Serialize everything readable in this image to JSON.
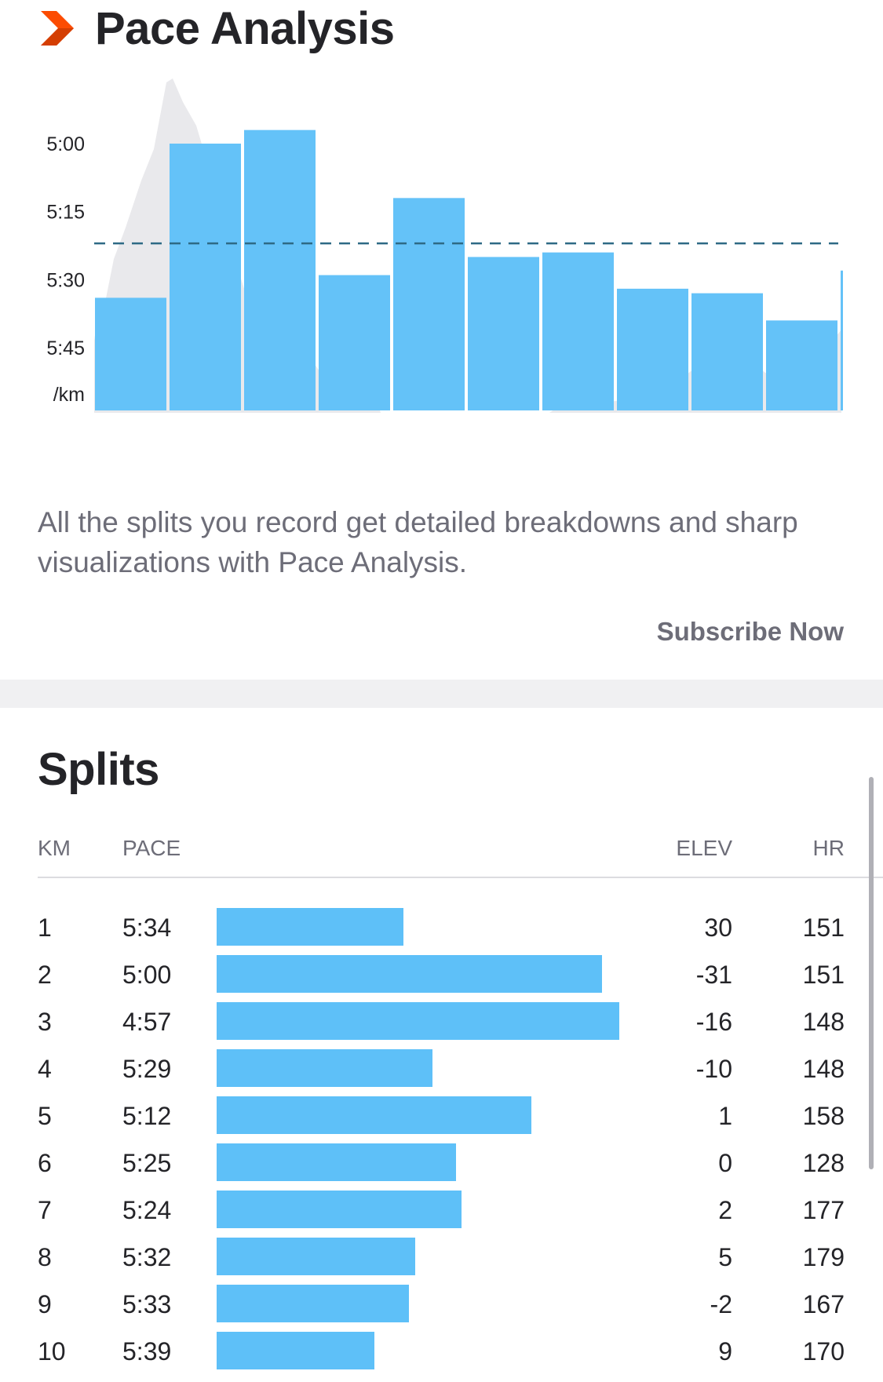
{
  "pace_analysis": {
    "title": "Pace Analysis",
    "icon": "chevron-right-icon",
    "description": "All the splits you record get detailed breakdowns and sharp visualizations with Pace Analysis.",
    "subscribe_label": "Subscribe Now"
  },
  "chart_data": {
    "type": "bar",
    "categories": [
      "1",
      "2",
      "3",
      "4",
      "5",
      "6",
      "7",
      "8",
      "9",
      "10",
      "11"
    ],
    "series": [
      {
        "values": [
          "5:34",
          "5:00",
          "4:57",
          "5:29",
          "5:12",
          "5:25",
          "5:24",
          "5:32",
          "5:33",
          "5:39",
          "5:28"
        ]
      }
    ],
    "yticks": [
      "5:00",
      "5:15",
      "5:30",
      "5:45"
    ],
    "ylabel": "/km",
    "reference_line": "5:22",
    "elevation_profile": true,
    "colors": {
      "bar": "#5ec0f8",
      "elevation": "#e9e9ec",
      "reference": "#2e6a85"
    }
  },
  "splits": {
    "title": "Splits",
    "columns": {
      "km": "KM",
      "pace": "PACE",
      "elev": "ELEV",
      "hr": "HR"
    },
    "rows": [
      {
        "km": "1",
        "pace": "5:34",
        "elev": "30",
        "hr": "151"
      },
      {
        "km": "2",
        "pace": "5:00",
        "elev": "-31",
        "hr": "151"
      },
      {
        "km": "3",
        "pace": "4:57",
        "elev": "-16",
        "hr": "148"
      },
      {
        "km": "4",
        "pace": "5:29",
        "elev": "-10",
        "hr": "148"
      },
      {
        "km": "5",
        "pace": "5:12",
        "elev": "1",
        "hr": "158"
      },
      {
        "km": "6",
        "pace": "5:25",
        "elev": "0",
        "hr": "128"
      },
      {
        "km": "7",
        "pace": "5:24",
        "elev": "2",
        "hr": "177"
      },
      {
        "km": "8",
        "pace": "5:32",
        "elev": "5",
        "hr": "179"
      },
      {
        "km": "9",
        "pace": "5:33",
        "elev": "-2",
        "hr": "167"
      },
      {
        "km": "10",
        "pace": "5:39",
        "elev": "9",
        "hr": "170"
      }
    ]
  },
  "colors": {
    "accent": "#fc4c02",
    "bar": "#5ec0f8",
    "text": "#242428",
    "muted": "#6d6d78"
  }
}
